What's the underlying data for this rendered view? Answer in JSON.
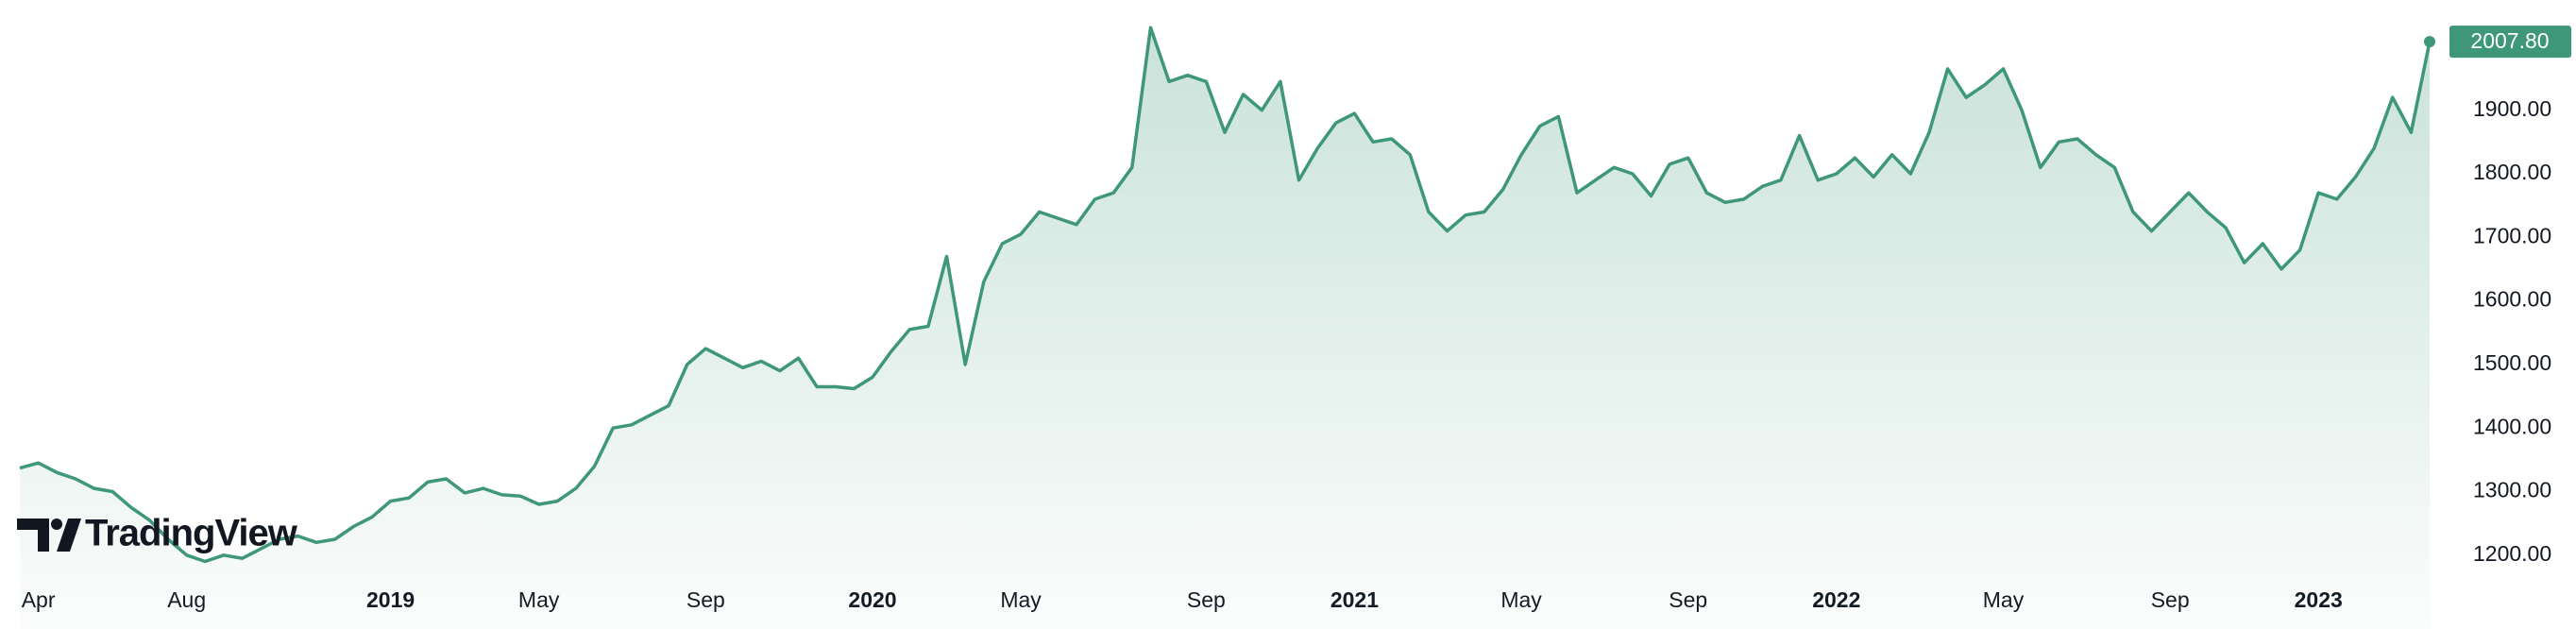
{
  "chart_data": {
    "type": "area",
    "watermark": "TradingView",
    "categories": [
      null,
      "Apr",
      null,
      null,
      null,
      null,
      null,
      null,
      null,
      "Aug",
      null,
      null,
      null,
      null,
      null,
      null,
      null,
      null,
      null,
      null,
      "2019",
      null,
      null,
      null,
      null,
      null,
      null,
      null,
      "May",
      null,
      null,
      null,
      null,
      null,
      null,
      null,
      null,
      "Sep",
      null,
      null,
      null,
      null,
      null,
      null,
      null,
      null,
      "2020",
      null,
      null,
      null,
      null,
      null,
      null,
      null,
      "May",
      null,
      null,
      null,
      null,
      null,
      null,
      null,
      null,
      null,
      "Sep",
      null,
      null,
      null,
      null,
      null,
      null,
      null,
      "2021",
      null,
      null,
      null,
      null,
      null,
      null,
      null,
      null,
      "May",
      null,
      null,
      null,
      null,
      null,
      null,
      null,
      null,
      "Sep",
      null,
      null,
      null,
      null,
      null,
      null,
      null,
      "2022",
      null,
      null,
      null,
      null,
      null,
      null,
      null,
      null,
      "May",
      null,
      null,
      null,
      null,
      null,
      null,
      null,
      null,
      "Sep",
      null,
      null,
      null,
      null,
      null,
      null,
      null,
      "2023",
      null,
      null,
      null,
      null,
      null,
      null
    ],
    "series": [
      {
        "color": "#3f977a",
        "values": [
          1337,
          1345,
          1330,
          1320,
          1305,
          1300,
          1275,
          1255,
          1225,
          1200,
          1190,
          1200,
          1195,
          1210,
          1225,
          1230,
          1220,
          1225,
          1245,
          1260,
          1285,
          1290,
          1315,
          1320,
          1298,
          1305,
          1295,
          1293,
          1280,
          1285,
          1305,
          1340,
          1400,
          1405,
          1420,
          1435,
          1500,
          1525,
          1510,
          1495,
          1505,
          1490,
          1510,
          1465,
          1465,
          1462,
          1480,
          1520,
          1555,
          1560,
          1670,
          1500,
          1630,
          1690,
          1705,
          1740,
          1730,
          1720,
          1760,
          1770,
          1810,
          2030,
          1945,
          1955,
          1945,
          1865,
          1925,
          1900,
          1945,
          1790,
          1840,
          1880,
          1895,
          1850,
          1855,
          1830,
          1740,
          1710,
          1735,
          1740,
          1775,
          1830,
          1875,
          1890,
          1770,
          1790,
          1810,
          1800,
          1765,
          1815,
          1825,
          1770,
          1755,
          1760,
          1780,
          1790,
          1860,
          1790,
          1800,
          1825,
          1795,
          1830,
          1800,
          1865,
          1965,
          1920,
          1940,
          1965,
          1900,
          1810,
          1850,
          1855,
          1830,
          1810,
          1740,
          1710,
          1740,
          1770,
          1740,
          1715,
          1660,
          1690,
          1650,
          1680,
          1770,
          1760,
          1795,
          1840,
          1920,
          1865,
          2007.8
        ],
        "value_labels": [
          null,
          null,
          null,
          null,
          null,
          null,
          null,
          null,
          null,
          null,
          null,
          null,
          null,
          null,
          null,
          null,
          null,
          null,
          null,
          null,
          null,
          null,
          null,
          null,
          null,
          null,
          null,
          null,
          null,
          null,
          null,
          null,
          null,
          null,
          null,
          null,
          null,
          null,
          null,
          null,
          null,
          null,
          null,
          null,
          null,
          null,
          null,
          null,
          null,
          null,
          null,
          null,
          null,
          null,
          null,
          null,
          null,
          null,
          null,
          null,
          null,
          null,
          null,
          null,
          null,
          null,
          null,
          null,
          null,
          null,
          null,
          null,
          null,
          null,
          null,
          null,
          null,
          null,
          null,
          null,
          null,
          null,
          null,
          null,
          null,
          null,
          null,
          null,
          null,
          null,
          null,
          null,
          null,
          null,
          null,
          null,
          null,
          null,
          null,
          null,
          null,
          null,
          null,
          null,
          null,
          null,
          null,
          null,
          null,
          null,
          null,
          null,
          null,
          null,
          null,
          null,
          null,
          null,
          null,
          null,
          null,
          null,
          null,
          null,
          null,
          null,
          null,
          null,
          null,
          null,
          "2007.80"
        ]
      }
    ],
    "ylim": [
      1170,
      2060
    ],
    "yticks": [
      {
        "value": 1200,
        "label": "1200.00"
      },
      {
        "value": 1300,
        "label": "1300.00"
      },
      {
        "value": 1400,
        "label": "1400.00"
      },
      {
        "value": 1500,
        "label": "1500.00"
      },
      {
        "value": 1600,
        "label": "1600.00"
      },
      {
        "value": 1700,
        "label": "1700.00"
      },
      {
        "value": 1800,
        "label": "1800.00"
      },
      {
        "value": 1900,
        "label": "1900.00"
      }
    ],
    "grid": false
  }
}
